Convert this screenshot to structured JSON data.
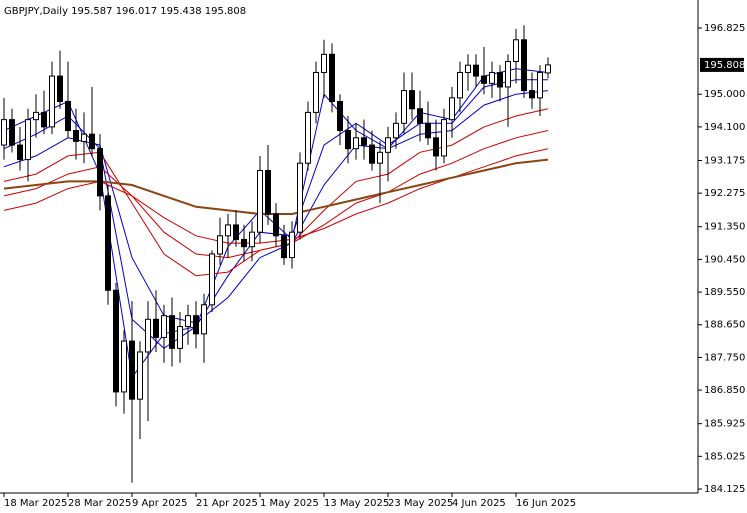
{
  "chart_data": {
    "type": "candlestick",
    "title": "GBPJPY,Daily  195.587 196.017 195.438 195.808",
    "categories": [
      "18 Mar 2025",
      null,
      null,
      null,
      null,
      null,
      null,
      null,
      "28 Mar 2025",
      null,
      null,
      null,
      null,
      null,
      null,
      null,
      "9 Apr 2025",
      null,
      null,
      null,
      null,
      null,
      null,
      null,
      "21 Apr 2025",
      null,
      null,
      null,
      null,
      null,
      null,
      null,
      "1 May 2025",
      null,
      null,
      null,
      null,
      null,
      null,
      null,
      "13 May 2025",
      null,
      null,
      null,
      null,
      null,
      null,
      null,
      "23 May 2025",
      null,
      null,
      null,
      null,
      null,
      null,
      null,
      "4 Jun 2025",
      null,
      null,
      null,
      null,
      null,
      null,
      null,
      "16 Jun 2025",
      null,
      null,
      null,
      null
    ],
    "open": [
      193.6,
      194.3,
      193.6,
      193.2,
      194.3,
      194.5,
      194.1,
      195.5,
      194.8,
      194.0,
      193.7,
      193.9,
      193.5,
      192.2,
      189.6,
      186.8,
      188.2,
      186.6,
      187.9,
      188.8,
      188.3,
      188.9,
      188.0,
      188.6,
      188.9,
      188.4,
      189.2,
      190.6,
      191.1,
      191.4,
      191.0,
      190.8,
      191.2,
      192.9,
      191.7,
      191.1,
      190.5,
      191.2,
      193.1,
      194.5,
      195.6,
      196.1,
      194.8,
      194.0,
      193.5,
      193.8,
      193.6,
      193.1,
      193.4,
      193.8,
      194.2,
      195.1,
      194.6,
      194.2,
      193.8,
      193.3,
      194.3,
      194.9,
      195.6,
      195.8,
      195.5,
      195.3,
      195.6,
      195.2,
      195.9,
      196.5,
      195.1,
      194.9,
      195.587
    ],
    "high": [
      194.9,
      194.6,
      194.1,
      194.6,
      195.0,
      195.1,
      195.9,
      196.2,
      195.9,
      194.6,
      194.5,
      195.2,
      193.9,
      192.5,
      189.8,
      188.5,
      189.3,
      188.2,
      189.3,
      189.6,
      189.2,
      189.4,
      189.0,
      189.2,
      189.3,
      189.5,
      190.7,
      191.6,
      191.7,
      191.8,
      191.4,
      191.5,
      193.3,
      193.6,
      192.0,
      191.4,
      191.5,
      193.4,
      194.8,
      195.9,
      196.5,
      196.4,
      195.0,
      194.4,
      194.2,
      194.3,
      194.0,
      193.7,
      194.1,
      194.5,
      195.6,
      195.6,
      195.1,
      194.8,
      194.3,
      194.6,
      195.2,
      195.9,
      196.1,
      196.1,
      196.3,
      195.9,
      195.8,
      196.1,
      196.8,
      196.9,
      195.6,
      195.8,
      196.017
    ],
    "low": [
      193.2,
      193.4,
      192.9,
      192.6,
      193.8,
      193.9,
      193.9,
      194.6,
      193.8,
      193.2,
      193.1,
      193.3,
      191.8,
      189.2,
      186.4,
      186.2,
      184.3,
      185.5,
      186.0,
      187.9,
      187.6,
      187.5,
      187.6,
      188.1,
      188.0,
      187.6,
      189.0,
      190.3,
      190.5,
      190.8,
      190.4,
      190.4,
      190.9,
      191.4,
      190.8,
      190.3,
      190.2,
      191.0,
      192.9,
      194.2,
      194.9,
      194.5,
      193.6,
      193.1,
      193.2,
      193.2,
      192.9,
      192.0,
      192.6,
      193.5,
      193.9,
      194.3,
      193.7,
      193.6,
      192.9,
      193.1,
      193.8,
      194.5,
      195.1,
      195.2,
      195.0,
      194.9,
      194.8,
      194.1,
      195.3,
      194.9,
      194.6,
      194.4,
      195.438
    ],
    "close": [
      194.3,
      193.6,
      193.2,
      194.3,
      194.5,
      194.1,
      195.5,
      194.8,
      194.0,
      193.7,
      193.9,
      193.5,
      192.2,
      189.6,
      186.8,
      188.2,
      186.6,
      187.9,
      188.8,
      188.3,
      188.9,
      188.0,
      188.6,
      188.9,
      188.4,
      189.2,
      190.6,
      191.1,
      191.4,
      191.0,
      190.8,
      191.2,
      192.9,
      191.7,
      191.1,
      190.5,
      191.2,
      193.1,
      194.5,
      195.6,
      196.1,
      194.8,
      194.0,
      193.5,
      193.8,
      193.6,
      193.1,
      193.4,
      193.8,
      194.2,
      195.1,
      194.6,
      194.2,
      193.8,
      193.3,
      194.3,
      194.9,
      195.6,
      195.8,
      195.5,
      195.3,
      195.6,
      195.2,
      195.9,
      196.5,
      195.1,
      194.9,
      195.6,
      195.808
    ],
    "last_price_label": "195.808",
    "x": [
      0,
      4,
      8,
      12,
      16,
      20,
      24,
      28,
      32,
      36,
      40,
      44,
      48,
      52,
      56,
      60,
      64,
      68
    ],
    "series": [
      {
        "color": "#0000cc",
        "values": [
          194.0,
          194.4,
          194.8,
          192.8,
          187.2,
          188.4,
          188.6,
          190.8,
          191.8,
          191.0,
          195.0,
          194.0,
          193.5,
          194.5,
          194.3,
          195.5,
          195.7,
          195.6
        ]
      },
      {
        "color": "#0000cc",
        "values": [
          193.5,
          193.9,
          194.4,
          193.5,
          188.8,
          188.0,
          188.6,
          190.0,
          191.2,
          191.1,
          193.6,
          194.2,
          193.6,
          194.2,
          194.2,
          195.2,
          195.4,
          195.4
        ]
      },
      {
        "color": "#0000cc",
        "values": [
          193.0,
          193.3,
          193.8,
          193.6,
          190.5,
          188.9,
          188.7,
          189.4,
          190.5,
          190.9,
          192.5,
          193.6,
          193.5,
          193.9,
          194.0,
          194.7,
          195.0,
          195.1
        ]
      },
      {
        "color": "#cc0000",
        "values": [
          192.6,
          192.8,
          193.3,
          193.4,
          192.0,
          190.6,
          190.0,
          190.1,
          190.7,
          190.9,
          191.8,
          192.6,
          192.8,
          193.4,
          193.6,
          194.1,
          194.4,
          194.6
        ]
      },
      {
        "color": "#cc0000",
        "values": [
          192.2,
          192.4,
          192.8,
          193.0,
          192.2,
          191.2,
          190.6,
          190.5,
          190.7,
          190.9,
          191.4,
          192.0,
          192.3,
          192.8,
          193.1,
          193.5,
          193.8,
          194.0
        ]
      },
      {
        "color": "#cc0000",
        "values": [
          191.8,
          192.0,
          192.4,
          192.6,
          192.2,
          191.6,
          191.1,
          190.9,
          190.9,
          191.0,
          191.3,
          191.7,
          192.0,
          192.4,
          192.7,
          193.0,
          193.3,
          193.5
        ]
      },
      {
        "color": "#8b4513",
        "values": [
          192.4,
          192.5,
          192.6,
          192.6,
          192.5,
          192.2,
          191.9,
          191.8,
          191.7,
          191.7,
          191.9,
          192.1,
          192.3,
          192.5,
          192.7,
          192.9,
          193.1,
          193.2
        ]
      }
    ],
    "ylim": [
      184.015,
      197.596
    ],
    "yticks": [
      196.825,
      {
        "value": 195,
        "label": "195.000"
      },
      {
        "value": 194.1,
        "label": "194.100"
      },
      193.175,
      192.275,
      {
        "value": 191.35,
        "label": "191.350"
      },
      {
        "value": 190.45,
        "label": "190.450"
      },
      {
        "value": 189.55,
        "label": "189.550"
      },
      {
        "value": 188.65,
        "label": "188.650"
      },
      {
        "value": 187.75,
        "label": "187.750"
      },
      {
        "value": 186.85,
        "label": "186.850"
      },
      185.925,
      185.025,
      184.125
    ],
    "bull_color": "#ffffff",
    "bear_color": "#000000"
  }
}
